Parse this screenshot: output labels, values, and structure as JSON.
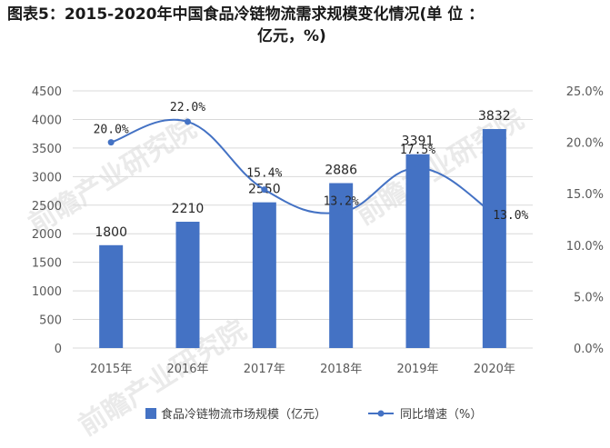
{
  "header": {
    "title_line1": "图表5：2015-2020年中国食品冷链物流需求规模变化情况(单 位 ：",
    "title_line2": "亿元，%)"
  },
  "watermark": {
    "text": "前瞻产业研究院"
  },
  "colors": {
    "bar": "#4472c4",
    "line": "#4472c4",
    "grid": "#d9d9d9"
  },
  "chart_data": {
    "type": "bar+line",
    "categories": [
      "2015年",
      "2016年",
      "2017年",
      "2018年",
      "2019年",
      "2020年"
    ],
    "series": [
      {
        "name": "食品冷链物流市场规模（亿元）",
        "type": "bar",
        "axis": "left",
        "values": [
          1800,
          2210,
          2550,
          2886,
          3391,
          3832
        ],
        "labels": [
          "1800",
          "2210",
          "2550",
          "2886",
          "3391",
          "3832"
        ]
      },
      {
        "name": "同比增速（%）",
        "type": "line",
        "axis": "right",
        "values": [
          20.0,
          22.0,
          15.4,
          13.2,
          17.5,
          13.0
        ],
        "labels": [
          "20.0%",
          "22.0%",
          "15.4%",
          "13.2%",
          "17.5%",
          "13.0%"
        ]
      }
    ],
    "y_left": {
      "min": 0,
      "max": 4500,
      "ticks": [
        "0",
        "500",
        "1000",
        "1500",
        "2000",
        "2500",
        "3000",
        "3500",
        "4000",
        "4500"
      ]
    },
    "y_right": {
      "min": 0,
      "max": 25,
      "ticks": [
        "0.0%",
        "5.0%",
        "10.0%",
        "15.0%",
        "20.0%",
        "25.0%"
      ]
    },
    "grid": true,
    "legend": [
      "食品冷链物流市场规模（亿元）",
      "同比增速（%）"
    ],
    "legend_position": "bottom"
  }
}
